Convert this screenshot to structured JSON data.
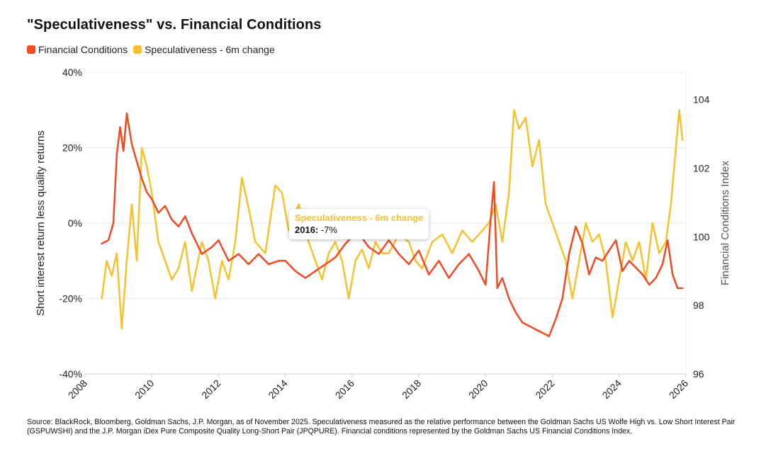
{
  "title": "\"Speculativeness\" vs. Financial Conditions",
  "legend": {
    "financial": "Financial Conditions",
    "spec": "Speculativeness - 6m change"
  },
  "colors": {
    "financial": "#f04a23",
    "spec": "#f5c12e",
    "grid": "#e8e8e8"
  },
  "tooltip": {
    "series": "Speculativeness - 6m change",
    "label": "2016:",
    "value": "-7%"
  },
  "source": "Source: BlackRock, Bloomberg, Goldman Sachs, J.P. Morgan, as of November 2025. Speculativeness measured as the relative performance between the Goldman Sachs US Wolfe High vs. Low Short Interest Pair (GSPUWSHI) and the J.P. Morgan iDex Pure Composite Quality Long-Short Pair (JPQPURE). Financial conditions represented by the Goldman Sachs US Financial Conditions Index.",
  "chart_data": {
    "type": "line",
    "title": "\"Speculativeness\" vs. Financial Conditions",
    "xlim": [
      2008,
      2026
    ],
    "x_ticks": [
      "2008",
      "2010",
      "2012",
      "2014",
      "2016",
      "2018",
      "2020",
      "2022",
      "2024",
      "2026"
    ],
    "y_left": {
      "label": "Short interest return less quality returns",
      "lim": [
        -40,
        40
      ],
      "ticks": [
        "40%",
        "20%",
        "0%",
        "-20%",
        "-40%"
      ]
    },
    "y_right": {
      "label": "Financial Conditions Index",
      "lim": [
        96,
        104.8
      ],
      "ticks": [
        "104",
        "102",
        "100",
        "98",
        "96"
      ]
    },
    "grid": true,
    "legend_position": "top-left",
    "series": [
      {
        "name": "Financial Conditions",
        "axis": "right",
        "x": [
          2008.5,
          2008.7,
          2008.85,
          2008.95,
          2009.05,
          2009.15,
          2009.25,
          2009.4,
          2009.55,
          2009.7,
          2009.85,
          2010.0,
          2010.2,
          2010.4,
          2010.6,
          2010.8,
          2011.0,
          2011.2,
          2011.5,
          2011.8,
          2012.0,
          2012.3,
          2012.6,
          2012.9,
          2013.2,
          2013.5,
          2013.8,
          2014.0,
          2014.3,
          2014.6,
          2014.9,
          2015.2,
          2015.5,
          2015.8,
          2016.0,
          2016.2,
          2016.5,
          2016.8,
          2017.1,
          2017.4,
          2017.7,
          2018.0,
          2018.3,
          2018.6,
          2018.9,
          2019.2,
          2019.5,
          2019.8,
          2020.0,
          2020.15,
          2020.25,
          2020.35,
          2020.5,
          2020.7,
          2020.9,
          2021.1,
          2021.3,
          2021.5,
          2021.7,
          2021.9,
          2022.1,
          2022.3,
          2022.5,
          2022.7,
          2022.9,
          2023.1,
          2023.3,
          2023.5,
          2023.7,
          2023.9,
          2024.1,
          2024.3,
          2024.5,
          2024.7,
          2024.9,
          2025.1,
          2025.3,
          2025.45,
          2025.6,
          2025.75,
          2025.9
        ],
        "values": [
          99.8,
          99.9,
          100.4,
          102.4,
          103.2,
          102.5,
          103.6,
          102.7,
          102.2,
          101.7,
          101.3,
          101.1,
          100.7,
          100.9,
          100.5,
          100.3,
          100.6,
          100.1,
          99.5,
          99.7,
          99.9,
          99.3,
          99.5,
          99.2,
          99.5,
          99.2,
          99.3,
          99.3,
          99.0,
          98.8,
          99.0,
          99.2,
          99.4,
          99.8,
          100.0,
          100.1,
          99.7,
          99.5,
          99.9,
          99.5,
          99.2,
          99.6,
          98.9,
          99.3,
          98.8,
          99.2,
          99.5,
          99.0,
          98.6,
          100.5,
          101.6,
          98.5,
          98.8,
          98.2,
          97.8,
          97.5,
          97.4,
          97.3,
          97.2,
          97.1,
          97.6,
          98.2,
          99.5,
          100.3,
          99.8,
          98.9,
          99.4,
          99.3,
          99.6,
          99.9,
          99.0,
          99.3,
          99.1,
          98.9,
          98.6,
          98.8,
          99.2,
          99.9,
          98.9,
          98.5,
          98.5
        ]
      },
      {
        "name": "Speculativeness - 6m change",
        "axis": "left",
        "x": [
          2008.5,
          2008.65,
          2008.8,
          2008.95,
          2009.1,
          2009.25,
          2009.4,
          2009.55,
          2009.7,
          2009.85,
          2010.0,
          2010.2,
          2010.4,
          2010.6,
          2010.8,
          2011.0,
          2011.2,
          2011.5,
          2011.7,
          2011.9,
          2012.1,
          2012.3,
          2012.5,
          2012.7,
          2012.9,
          2013.1,
          2013.4,
          2013.7,
          2013.9,
          2014.1,
          2014.4,
          2014.7,
          2014.9,
          2015.1,
          2015.3,
          2015.5,
          2015.7,
          2015.9,
          2016.1,
          2016.3,
          2016.5,
          2016.7,
          2016.9,
          2017.1,
          2017.4,
          2017.7,
          2017.9,
          2018.1,
          2018.4,
          2018.7,
          2019.0,
          2019.3,
          2019.6,
          2019.9,
          2020.1,
          2020.3,
          2020.5,
          2020.7,
          2020.85,
          2021.0,
          2021.2,
          2021.4,
          2021.6,
          2021.8,
          2022.0,
          2022.2,
          2022.4,
          2022.6,
          2022.8,
          2023.0,
          2023.2,
          2023.4,
          2023.6,
          2023.8,
          2024.0,
          2024.2,
          2024.4,
          2024.6,
          2024.8,
          2025.0,
          2025.2,
          2025.4,
          2025.55,
          2025.7,
          2025.8,
          2025.9
        ],
        "values": [
          -20,
          -10,
          -14,
          -8,
          -28,
          -10,
          5,
          -10,
          20,
          15,
          8,
          -5,
          -10,
          -15,
          -12,
          -5,
          -18,
          -5,
          -10,
          -20,
          -10,
          -15,
          -5,
          12,
          4,
          -5,
          -8,
          10,
          8,
          -2,
          5,
          -5,
          -10,
          -15,
          -8,
          -5,
          -10,
          -20,
          -10,
          -7,
          -12,
          -5,
          -8,
          -8,
          -3,
          -5,
          -10,
          -12,
          -5,
          -3,
          -8,
          -2,
          -5,
          -2,
          0,
          5,
          -5,
          8,
          30,
          25,
          28,
          15,
          22,
          5,
          0,
          -5,
          -10,
          -20,
          -10,
          0,
          -5,
          -3,
          -10,
          -25,
          -15,
          -5,
          -10,
          -5,
          -15,
          0,
          -8,
          -5,
          5,
          20,
          30,
          22
        ]
      }
    ]
  }
}
